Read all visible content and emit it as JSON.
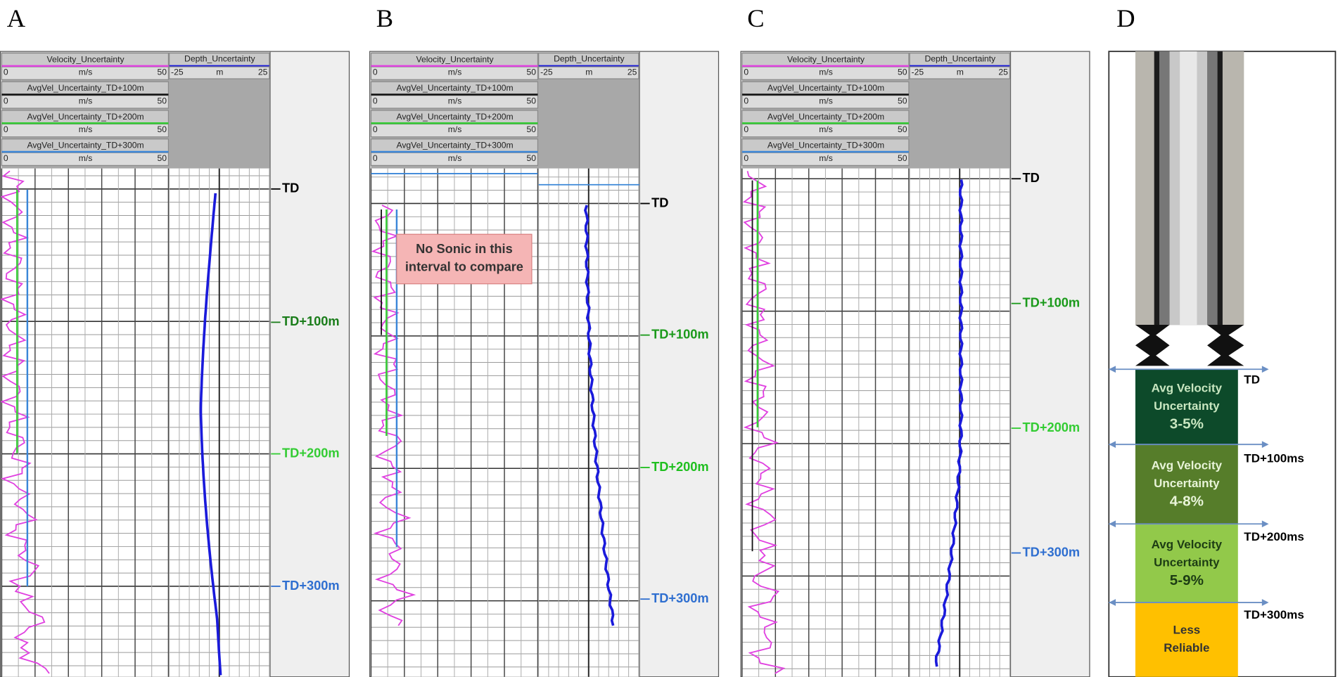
{
  "panels": [
    {
      "label": "A",
      "markers": [
        "TD",
        "TD+100m",
        "TD+200m",
        "TD+300m"
      ]
    },
    {
      "label": "B",
      "markers": [
        "TD",
        "TD+100m",
        "TD+200m",
        "TD+300m"
      ],
      "note": [
        "No Sonic in this",
        "interval to compare"
      ]
    },
    {
      "label": "C",
      "markers": [
        "TD",
        "TD+100m",
        "TD+200m",
        "TD+300m"
      ]
    }
  ],
  "log_header": {
    "tracks": [
      {
        "name": "Velocity_Uncertainty",
        "min": 0,
        "unit": "m/s",
        "max": 50
      },
      {
        "name": "AvgVel_Uncertainty_TD+100m",
        "min": 0,
        "unit": "m/s",
        "max": 50
      },
      {
        "name": "AvgVel_Uncertainty_TD+200m",
        "min": 0,
        "unit": "m/s",
        "max": 50
      },
      {
        "name": "AvgVel_Uncertainty_TD+300m",
        "min": 0,
        "unit": "m/s",
        "max": 50
      }
    ],
    "depth_track": {
      "name": "Depth_Uncertainty",
      "min": -25,
      "unit": "m",
      "max": 25
    }
  },
  "schematic": {
    "label": "D",
    "zones": [
      [
        "Avg Velocity",
        "Uncertainty",
        "3-5%"
      ],
      [
        "Avg Velocity",
        "Uncertainty",
        "4-8%"
      ],
      [
        "Avg Velocity",
        "Uncertainty",
        "5-9%"
      ],
      [
        "Less",
        "Reliable"
      ]
    ],
    "markers": [
      "TD",
      "TD+100ms",
      "TD+200ms",
      "TD+300ms"
    ]
  }
}
